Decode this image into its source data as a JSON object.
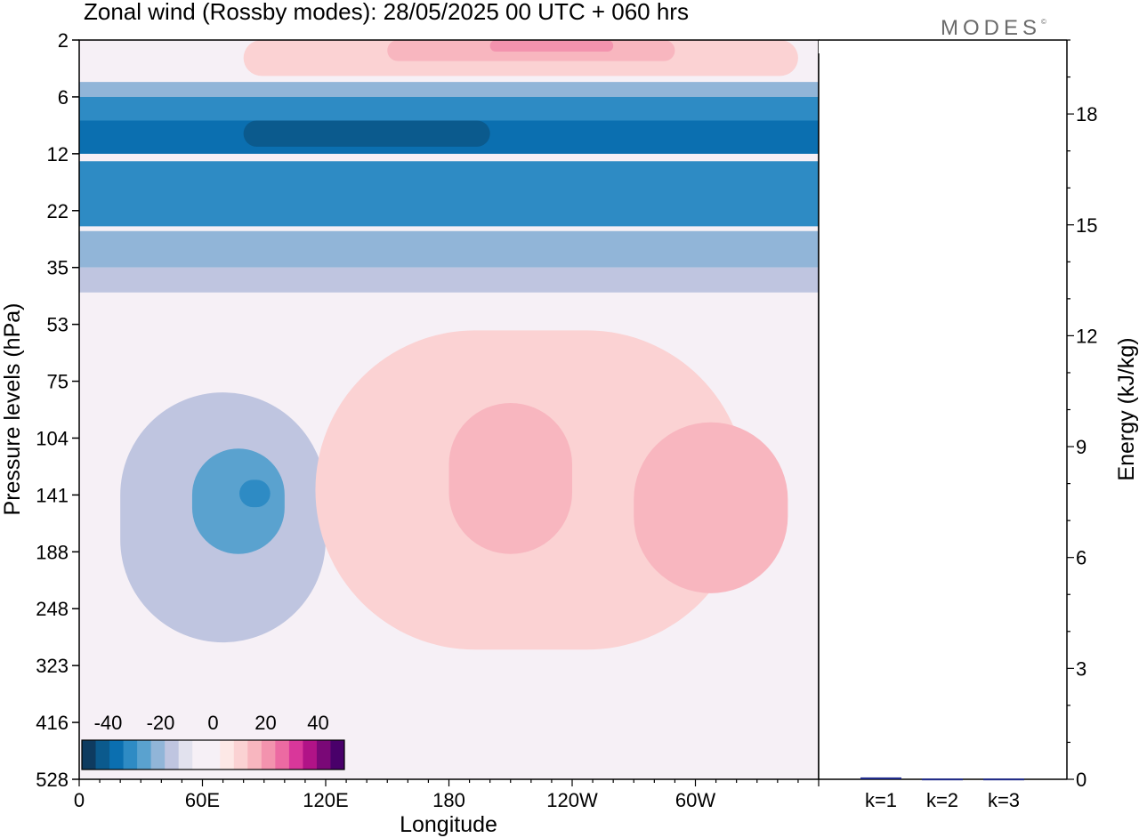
{
  "title": "Zonal wind (Rossby modes):  28/05/2025  00 UTC  + 060 hrs",
  "brand": "MODES",
  "brand_mark": "©",
  "colors": {
    "neg": [
      "#0e3b60",
      "#0b5a8d",
      "#0b6fb0",
      "#2e8bc4",
      "#5aa2cf",
      "#91b5d8",
      "#bfc5e0",
      "#e2e2ee"
    ],
    "near_zero": "#f6f0f6",
    "pos": [
      "#fde8e6",
      "#fbd2d3",
      "#f8b6bf",
      "#f393ae",
      "#ec6aa2",
      "#d9379a",
      "#b11387",
      "#7a0877",
      "#49006a"
    ]
  },
  "chart_data": [
    {
      "type": "heatmap",
      "title": "Zonal wind (Rossby modes):  28/05/2025  00 UTC  + 060 hrs",
      "xlabel": "Longitude",
      "ylabel": "Pressure levels (hPa)",
      "x_ticks": [
        "0",
        "60E",
        "120E",
        "180",
        "120W",
        "60W"
      ],
      "x_tick_values": [
        0,
        60,
        120,
        180,
        240,
        300
      ],
      "xlim": [
        0,
        360
      ],
      "y_ticks": [
        "2",
        "6",
        "12",
        "22",
        "35",
        "53",
        "75",
        "104",
        "141",
        "188",
        "248",
        "323",
        "416",
        "528"
      ],
      "y_scale": "log",
      "ylim": [
        528,
        2
      ],
      "colorbar": {
        "ticks": [
          "-40",
          "-20",
          "0",
          "20",
          "40"
        ],
        "tick_values": [
          -40,
          -20,
          0,
          20,
          40
        ],
        "range": [
          -50,
          50
        ],
        "levels": [
          -50,
          -45,
          -40,
          -35,
          -30,
          -25,
          -20,
          -15,
          -10,
          -5,
          0,
          5,
          10,
          15,
          20,
          25,
          30,
          35,
          40,
          45,
          50
        ]
      },
      "contours": [
        {
          "value": 7,
          "lon": [
            80,
            350
          ],
          "p": [
            2,
            4
          ]
        },
        {
          "value": 12,
          "lon": [
            150,
            290
          ],
          "p": [
            2,
            3
          ]
        },
        {
          "value": 18,
          "lon": [
            200,
            260
          ],
          "p": [
            2,
            2.5
          ]
        },
        {
          "value": -10,
          "lon": [
            0,
            360
          ],
          "p": [
            4.5,
            6
          ]
        },
        {
          "value": -20,
          "lon": [
            0,
            360
          ],
          "p": [
            6,
            10
          ]
        },
        {
          "value": -25,
          "lon": [
            0,
            360
          ],
          "p": [
            8,
            12
          ]
        },
        {
          "value": -32,
          "lon": [
            80,
            200
          ],
          "p": [
            8,
            11
          ]
        },
        {
          "value": -20,
          "lon": [
            0,
            360
          ],
          "p": [
            13,
            25
          ]
        },
        {
          "value": -10,
          "lon": [
            0,
            360
          ],
          "p": [
            26,
            35
          ]
        },
        {
          "value": -5,
          "lon": [
            0,
            360
          ],
          "p": [
            35,
            42
          ]
        },
        {
          "value": -6,
          "lon": [
            20,
            120
          ],
          "p": [
            80,
            290
          ]
        },
        {
          "value": -15,
          "lon": [
            55,
            100
          ],
          "p": [
            110,
            190
          ]
        },
        {
          "value": -22,
          "lon": [
            78,
            93
          ],
          "p": [
            130,
            150
          ]
        },
        {
          "value": 6,
          "lon": [
            115,
            325
          ],
          "p": [
            55,
            300
          ]
        },
        {
          "value": 12,
          "lon": [
            180,
            240
          ],
          "p": [
            85,
            190
          ]
        },
        {
          "value": 14,
          "lon": [
            270,
            345
          ],
          "p": [
            95,
            230
          ]
        }
      ]
    },
    {
      "type": "bar",
      "categories": [
        "k=1",
        "k=2",
        "k=3"
      ],
      "values": [
        0.05,
        0.02,
        0.02
      ],
      "ylabel": "Energy (kJ/kg)",
      "y_ticks": [
        "0",
        "3",
        "6",
        "9",
        "12",
        "15",
        "18"
      ],
      "y_tick_values": [
        0,
        3,
        6,
        9,
        12,
        15,
        18
      ],
      "ylim": [
        0,
        20
      ],
      "bar_color": "#1f2a8a"
    }
  ]
}
